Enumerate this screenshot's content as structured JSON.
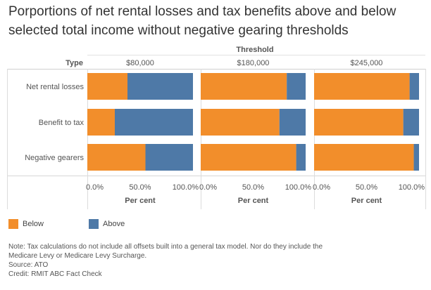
{
  "title_lines": [
    "Porportions of net rental losses and tax benefits above and below",
    "selected total income without negative gearing thresholds"
  ],
  "legend": {
    "items": [
      {
        "label": "Below",
        "color": "#F28E2B"
      },
      {
        "label": "Above",
        "color": "#4E79A7"
      }
    ]
  },
  "notes": {
    "note_line1": "Note: Tax calculations do not include all offsets built into a general tax model. Nor do they include the",
    "note_line2": "Medicare Levy or Medicare Levy Surcharge.",
    "source": "Source: ATO",
    "credit": "Credit: RMIT ABC Fact Check"
  },
  "chart_data": {
    "type": "bar",
    "orientation": "horizontal",
    "stacked": true,
    "column_header": "Threshold",
    "row_header": "Type",
    "panels": [
      "$80,000",
      "$180,000",
      "$245,000"
    ],
    "categories": [
      "Net rental losses",
      "Benefit to tax",
      "Negative gearers"
    ],
    "xlabel": "Per cent",
    "xticks": [
      "0.0%",
      "50.0%",
      "100.0%"
    ],
    "xlim": [
      0,
      100
    ],
    "series": [
      {
        "name": "Below",
        "color": "#F28E2B",
        "values": [
          [
            38,
            26,
            55
          ],
          [
            82,
            75,
            91
          ],
          [
            91,
            85,
            95
          ]
        ]
      },
      {
        "name": "Above",
        "color": "#4E79A7",
        "values": [
          [
            62,
            74,
            45
          ],
          [
            18,
            25,
            9
          ],
          [
            9,
            15,
            5
          ]
        ]
      }
    ]
  }
}
